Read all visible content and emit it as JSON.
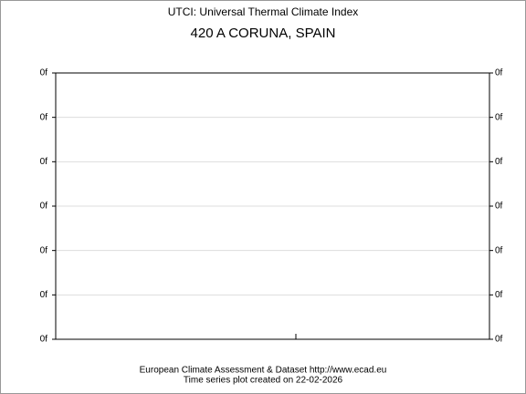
{
  "chart_data": {
    "type": "line",
    "title": "UTCI: Universal Thermal Climate Index",
    "subtitle": "420 A CORUNA, SPAIN",
    "ylim": [
      0,
      6
    ],
    "yticks": [
      {
        "value": 0,
        "label": "0f"
      },
      {
        "value": 1,
        "label": "0f"
      },
      {
        "value": 2,
        "label": "0f"
      },
      {
        "value": 3,
        "label": "0f"
      },
      {
        "value": 4,
        "label": "0f"
      },
      {
        "value": 5,
        "label": "0f"
      },
      {
        "value": 6,
        "label": "0f"
      }
    ],
    "grid": true,
    "annotations": [
      "European Climate Assessment & Dataset  http://www.ecad.eu",
      "Time series plot created on 22-02-2026"
    ]
  }
}
